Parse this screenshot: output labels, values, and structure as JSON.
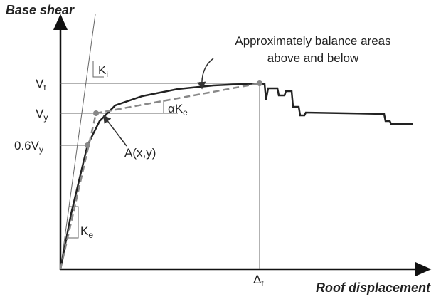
{
  "axes": {
    "y": "Base shear",
    "x": "Roof displacement"
  },
  "annotation": [
    "Approximately balance areas",
    "above and below"
  ],
  "levels": [
    {
      "main": "V",
      "sub": "t"
    },
    {
      "main": "V",
      "sub": "y"
    },
    {
      "main": "0.6V",
      "sub": "y"
    }
  ],
  "stiffness": {
    "initial": {
      "main": "K",
      "sub": "i"
    },
    "effective": {
      "main": "K",
      "sub": "e"
    },
    "post": {
      "main": "αK",
      "sub": "e"
    }
  },
  "point": "A(x,y)",
  "target": {
    "main": "Δ",
    "sub": "t"
  }
}
